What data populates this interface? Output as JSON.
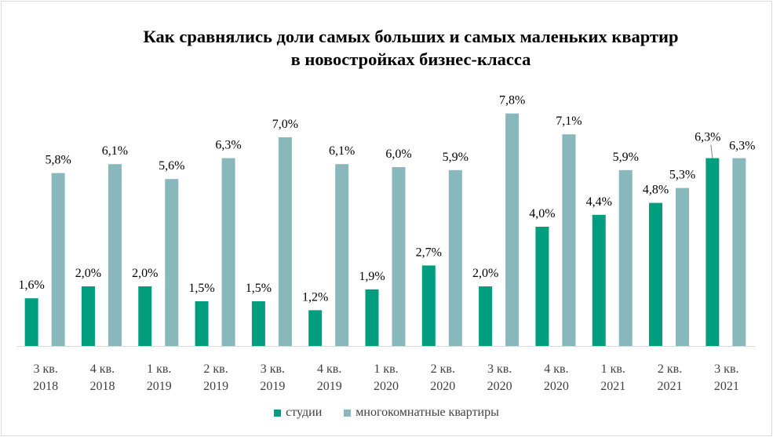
{
  "chart_data": {
    "type": "bar",
    "title": [
      "Как сравнялись доли самых больших и самых маленьких квартир",
      "в новостройках  бизнес-класса"
    ],
    "categories": [
      [
        "3 кв.",
        "2018"
      ],
      [
        "4 кв.",
        "2018"
      ],
      [
        "1 кв.",
        "2019"
      ],
      [
        "2 кв.",
        "2019"
      ],
      [
        "3 кв.",
        "2019"
      ],
      [
        "4 кв.",
        "2019"
      ],
      [
        "1 кв.",
        "2020"
      ],
      [
        "2 кв.",
        "2020"
      ],
      [
        "3 кв.",
        "2020"
      ],
      [
        "4 кв.",
        "2020"
      ],
      [
        "1 кв.",
        "2021"
      ],
      [
        "2 кв.",
        "2021"
      ],
      [
        "3 кв.",
        "2021"
      ]
    ],
    "series": [
      {
        "name": "студии",
        "color": "#009E7F",
        "values": [
          1.6,
          2.0,
          2.0,
          1.5,
          1.5,
          1.2,
          1.9,
          2.7,
          2.0,
          4.0,
          4.4,
          4.8,
          6.3
        ],
        "labels": [
          "1,6%",
          "2,0%",
          "2,0%",
          "1,5%",
          "1,5%",
          "1,2%",
          "1,9%",
          "2,7%",
          "2,0%",
          "4,0%",
          "4,4%",
          "4,8%",
          "6,3%"
        ]
      },
      {
        "name": "многокомнатные квартиры",
        "color": "#88B8BC",
        "values": [
          5.8,
          6.1,
          5.6,
          6.3,
          7.0,
          6.1,
          6.0,
          5.9,
          7.8,
          7.1,
          5.9,
          5.3,
          6.3
        ],
        "labels": [
          "5,8%",
          "6,1%",
          "5,6%",
          "6,3%",
          "7,0%",
          "6,1%",
          "6,0%",
          "5,9%",
          "7,8%",
          "7,1%",
          "5,9%",
          "5,3%",
          "6,3%"
        ]
      }
    ],
    "ylim": [
      0,
      8
    ],
    "xlabel": "",
    "ylabel": "",
    "grid": false,
    "legend": "bottom"
  }
}
